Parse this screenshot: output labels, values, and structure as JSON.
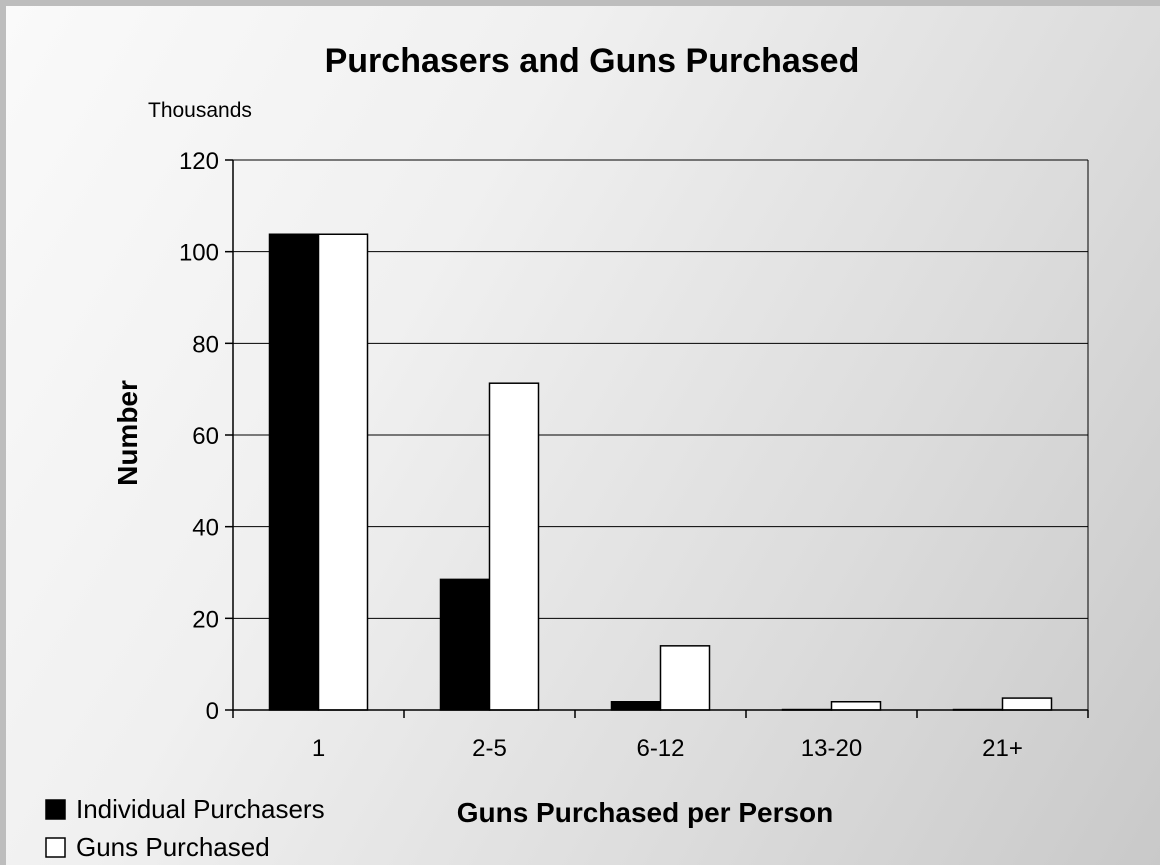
{
  "chart_data": {
    "type": "bar",
    "title": "Purchasers and Guns Purchased",
    "unit_label": "Thousands",
    "xlabel": "Guns Purchased per Person",
    "ylabel": "Number",
    "categories": [
      "1",
      "2-5",
      "6-12",
      "13-20",
      "21+"
    ],
    "series": [
      {
        "name": "Individual Purchasers",
        "values": [
          103.8,
          28.5,
          1.8,
          0.1,
          0.1
        ],
        "color": "#000000"
      },
      {
        "name": "Guns Purchased",
        "values": [
          103.8,
          71.3,
          14.0,
          1.8,
          2.6
        ],
        "color": "#ffffff"
      }
    ],
    "ylim": [
      0,
      120
    ],
    "yticks": [
      0,
      20,
      40,
      60,
      80,
      100,
      120
    ],
    "grid": true,
    "legend_position": "bottom-left",
    "colors": {
      "gridline": "#000000",
      "axis": "#000000",
      "bar_stroke": "#000000"
    }
  }
}
